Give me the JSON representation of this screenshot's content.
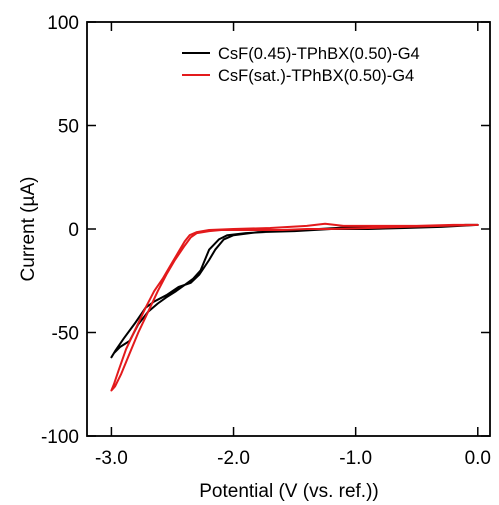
{
  "chart_data": {
    "type": "line",
    "xlabel": "Potential (V (vs. ref.))",
    "ylabel": "Current (µA)",
    "xlim": [
      -3.2,
      0.1
    ],
    "ylim": [
      -100,
      100
    ],
    "xticks": [
      -3.0,
      -2.0,
      -1.0,
      0.0
    ],
    "xtick_labels": [
      "-3.0",
      "-2.0",
      "-1.0",
      "0.0"
    ],
    "yticks": [
      100,
      50,
      0,
      -50,
      -100
    ],
    "ytick_labels": [
      "100",
      "50",
      "0",
      "-50",
      "-100"
    ],
    "grid": false,
    "legend_position": "top-right",
    "series": [
      {
        "name": "CsF(0.45)-TPhBX(0.50)-G4",
        "color": "#000000",
        "x": [
          0.0,
          -0.3,
          -0.6,
          -0.9,
          -1.2,
          -1.5,
          -1.8,
          -2.0,
          -2.08,
          -2.15,
          -2.2,
          -2.28,
          -2.35,
          -2.45,
          -2.55,
          -2.65,
          -2.72,
          -2.8,
          -2.9,
          -2.97,
          -3.0,
          -2.98,
          -2.93,
          -2.85,
          -2.78,
          -2.7,
          -2.62,
          -2.55,
          -2.47,
          -2.4,
          -2.33,
          -2.27,
          -2.2,
          -2.12,
          -2.05,
          -1.9,
          -1.6,
          -1.3,
          -1.0,
          -0.7,
          -0.4,
          -0.1,
          0.0
        ],
        "y": [
          2,
          1,
          0.5,
          0,
          0,
          -1,
          -1.5,
          -3,
          -5,
          -10,
          -15,
          -22,
          -26,
          -28,
          -32,
          -35,
          -38,
          -45,
          -53,
          -59,
          -62,
          -60,
          -57,
          -54,
          -46,
          -40,
          -36,
          -33,
          -30,
          -27,
          -24,
          -20,
          -10,
          -5,
          -3,
          -2,
          -1,
          0,
          1,
          1,
          1,
          2,
          2
        ]
      },
      {
        "name": "CsF(sat.)-TPhBX(0.50)-G4",
        "color": "#e31a1c",
        "x": [
          0.0,
          -0.3,
          -0.6,
          -0.9,
          -1.2,
          -1.4,
          -1.6,
          -1.8,
          -2.0,
          -2.1,
          -2.2,
          -2.3,
          -2.35,
          -2.4,
          -2.48,
          -2.55,
          -2.62,
          -2.7,
          -2.78,
          -2.85,
          -2.92,
          -2.97,
          -3.0,
          -2.98,
          -2.94,
          -2.88,
          -2.8,
          -2.72,
          -2.65,
          -2.58,
          -2.52,
          -2.46,
          -2.4,
          -2.36,
          -2.3,
          -2.2,
          -2.0,
          -1.7,
          -1.4,
          -1.25,
          -1.1,
          -0.8,
          -0.5,
          -0.2,
          0.0
        ],
        "y": [
          2,
          1.5,
          1,
          0.5,
          0,
          0,
          -0.5,
          -0.5,
          -0.5,
          -0.5,
          -1,
          -2,
          -4,
          -8,
          -15,
          -22,
          -30,
          -40,
          -50,
          -60,
          -70,
          -76,
          -78,
          -75,
          -68,
          -58,
          -48,
          -38,
          -30,
          -24,
          -18,
          -12,
          -6,
          -3,
          -1.5,
          -0.5,
          0,
          0.5,
          1.5,
          2.5,
          1.5,
          1.5,
          1.5,
          2,
          2
        ]
      }
    ]
  }
}
